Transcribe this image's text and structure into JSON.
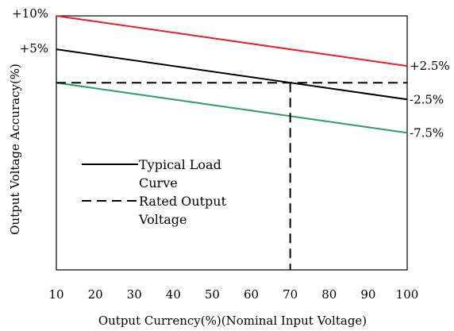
{
  "chart_data": {
    "type": "line",
    "xlabel": "Output Currency(%)(Nominal Input Voltage)",
    "ylabel": "Output Voltage Accuracy(%)",
    "xlim": [
      10,
      100
    ],
    "ylim": [
      -28,
      10
    ],
    "x_ticks": [
      10,
      20,
      30,
      40,
      50,
      60,
      70,
      80,
      90,
      100
    ],
    "x_tick_labels": [
      "10",
      "20",
      "30",
      "40",
      "50",
      "60",
      "70",
      "80",
      "90",
      "100"
    ],
    "left_labels": [
      {
        "text": "+10%",
        "y": 10
      },
      {
        "text": "+5%",
        "y": 5
      }
    ],
    "right_labels": [
      {
        "text": "+2.5%",
        "y": 2.5
      },
      {
        "text": "-2.5%",
        "y": -2.5
      },
      {
        "text": "-7.5%",
        "y": -7.5
      }
    ],
    "series": [
      {
        "key": "upper",
        "color": "#ee1c25",
        "dash": "solid",
        "x": [
          10,
          100
        ],
        "y": [
          10,
          2.5
        ]
      },
      {
        "name": "Typical Load Curve",
        "key": "typical",
        "color": "#000000",
        "dash": "solid",
        "x": [
          10,
          100
        ],
        "y": [
          5,
          -2.5
        ]
      },
      {
        "key": "lower",
        "color": "#2e9c62",
        "dash": "solid",
        "x": [
          10,
          100
        ],
        "y": [
          0,
          -7.5
        ]
      },
      {
        "name": "Rated Output Voltage",
        "key": "rated",
        "color": "#000000",
        "dash": "dashed",
        "x": [
          10,
          100
        ],
        "y": [
          0,
          0
        ]
      },
      {
        "key": "rated-vertical",
        "color": "#000000",
        "dash": "dashed",
        "x": [
          70,
          70
        ],
        "y": [
          0,
          -28
        ]
      }
    ],
    "legend": {
      "placement": "inside-left",
      "entries": [
        {
          "label_lines": [
            "Typical Load",
            "Curve"
          ],
          "dash": "solid",
          "color": "#000000"
        },
        {
          "label_lines": [
            "Rated Output",
            "Voltage"
          ],
          "dash": "dashed",
          "color": "#000000"
        }
      ]
    },
    "grid": false
  }
}
